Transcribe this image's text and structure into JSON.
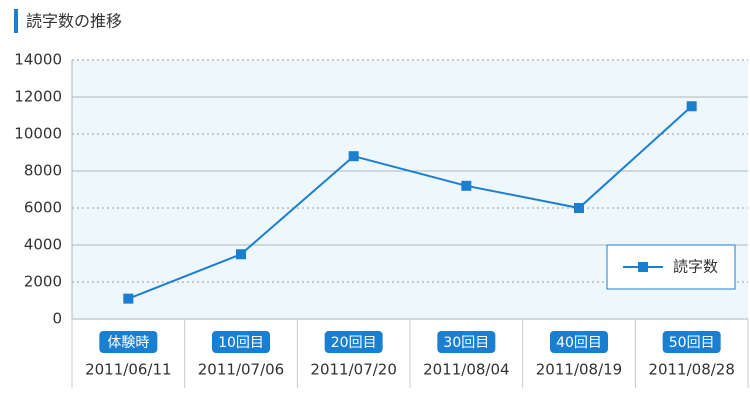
{
  "chart_data": {
    "type": "line",
    "title": "読字数の推移",
    "categories": [
      "体験時",
      "10回目",
      "20回目",
      "30回目",
      "40回目",
      "50回目"
    ],
    "category_dates": [
      "2011/06/11",
      "2011/07/06",
      "2011/07/20",
      "2011/08/04",
      "2011/08/19",
      "2011/08/28"
    ],
    "series": [
      {
        "name": "読字数",
        "color": "#1a7fd0",
        "values": [
          1100,
          3500,
          8800,
          7200,
          6000,
          11500
        ]
      }
    ],
    "ylim": [
      0,
      14000
    ],
    "yticks": [
      0,
      2000,
      4000,
      6000,
      8000,
      10000,
      12000,
      14000
    ],
    "grid": true,
    "legend": "lower right"
  }
}
